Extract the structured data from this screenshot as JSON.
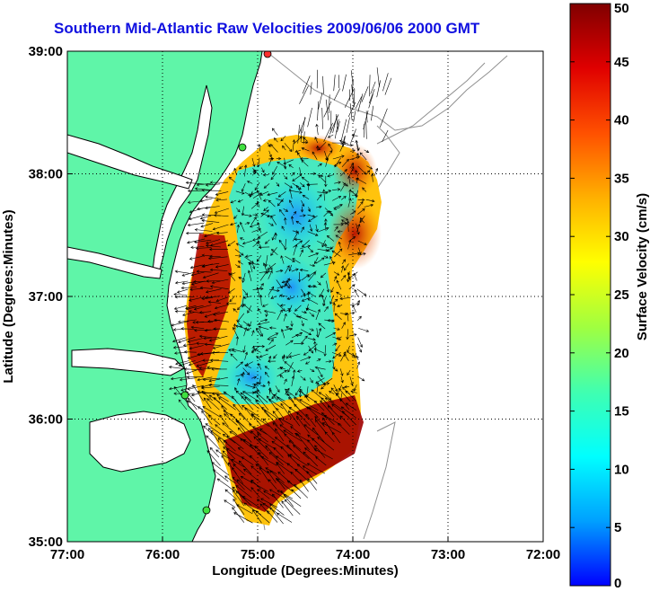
{
  "title": "Southern Mid-Atlantic Raw Velocities 2009/06/06 2000 GMT",
  "x_axis": {
    "label": "Longitude (Degrees:Minutes)",
    "ticks": [
      "77:00",
      "76:00",
      "75:00",
      "74:00",
      "73:00",
      "72:00"
    ]
  },
  "y_axis": {
    "label": "Latitude (Degrees:Minutes)",
    "ticks": [
      "39:00",
      "38:00",
      "37:00",
      "36:00",
      "35:00"
    ]
  },
  "colorbar": {
    "label": "Surface Velocity (cm/s)",
    "ticks": [
      "50",
      "45",
      "40",
      "35",
      "30",
      "25",
      "20",
      "15",
      "10",
      "5",
      "0"
    ],
    "colors": [
      "#0000ff",
      "#00a0ff",
      "#00ffff",
      "#40ffb0",
      "#a0ff40",
      "#ffff00",
      "#ffb000",
      "#ff5000",
      "#e00000",
      "#800000"
    ]
  },
  "colors": {
    "land": "#5ff5a8",
    "grid": "#000000",
    "arrows": "#000000",
    "bathymetry": "#909090"
  },
  "chart_data": {
    "type": "heatmap",
    "title": "Southern Mid-Atlantic Raw Velocities 2009/06/06 2000 GMT",
    "xlabel": "Longitude (Degrees:Minutes)",
    "ylabel": "Latitude (Degrees:Minutes)",
    "xlim": [
      -77.0,
      -72.0
    ],
    "ylim": [
      35.0,
      39.0
    ],
    "color_range": [
      0,
      50
    ],
    "color_label": "Surface Velocity (cm/s)",
    "grid": true
  }
}
